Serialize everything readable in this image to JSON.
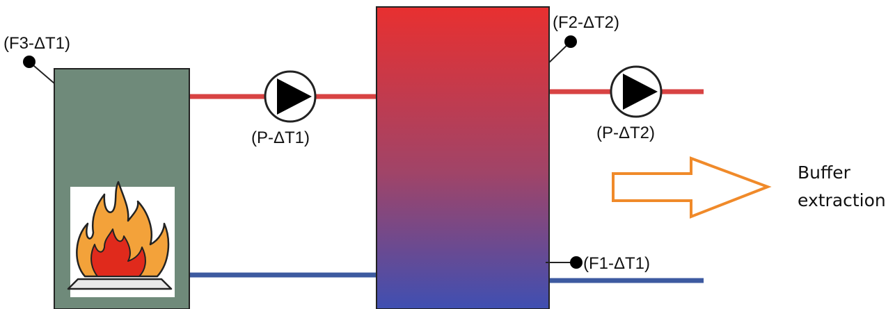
{
  "labels": {
    "boiler_sensor": "(F3-ΔT1)",
    "boiler_pump": "(P-ΔT1)",
    "tank_top_sensor": "(F2-ΔT2)",
    "output_pump": "(P-ΔT2)",
    "tank_bottom_sensor": "(F1-ΔT1)"
  },
  "note": {
    "line1": "Buffer",
    "line2": "extraction"
  },
  "colors": {
    "hot_pipe": "#d84343",
    "cold_pipe": "#3d5aa0",
    "boiler_body": "#6f8a7a",
    "tank_top": "#e83030",
    "tank_bottom": "#3f4fb2",
    "arrow_outline": "#f08a2a",
    "flame_outer": "#f3a23a",
    "flame_inner": "#e02a1c"
  },
  "icons": {
    "pump": "pump-icon",
    "fire": "fire-icon",
    "sensor": "sensor-dot-icon",
    "arrow": "hollow-arrow-icon"
  }
}
